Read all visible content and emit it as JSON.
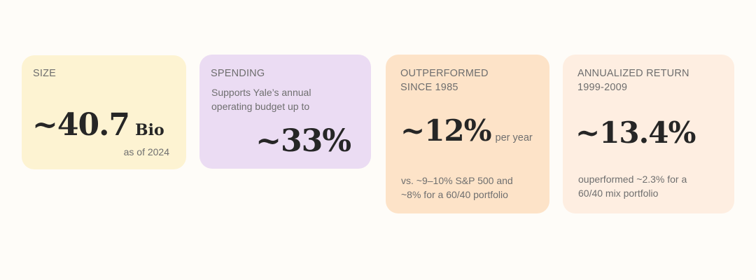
{
  "colors": {
    "page_background": "#fefcf8",
    "size_card": "#fdf3d2",
    "spending_card": "#ebdcf3",
    "outperformed_card": "#fde3c8",
    "annualized_card": "#feeee1"
  },
  "cards": {
    "size": {
      "label": "SIZE",
      "value": "~40.7",
      "unit": "Bio",
      "note": "as of 2024"
    },
    "spending": {
      "label": "SPENDING",
      "desc_line1": "Supports Yale’s annual",
      "desc_line2": "operating budget up to",
      "value": "~33%"
    },
    "outperformed": {
      "label_line1": "OUTPERFORMED",
      "label_line2": "SINCE 1985",
      "value": "~12%",
      "unit": "per year",
      "desc_line1": "vs. ~9–10% S&P 500 and",
      "desc_line2": "~8% for a 60/40 portfolio"
    },
    "annualized": {
      "label_line1": "ANNUALIZED RETURN",
      "label_line2": "1999-2009",
      "value": "~13.4%",
      "desc_line1": "ouperformed ~2.3% for a",
      "desc_line2": "60/40 mix portfolio"
    }
  }
}
